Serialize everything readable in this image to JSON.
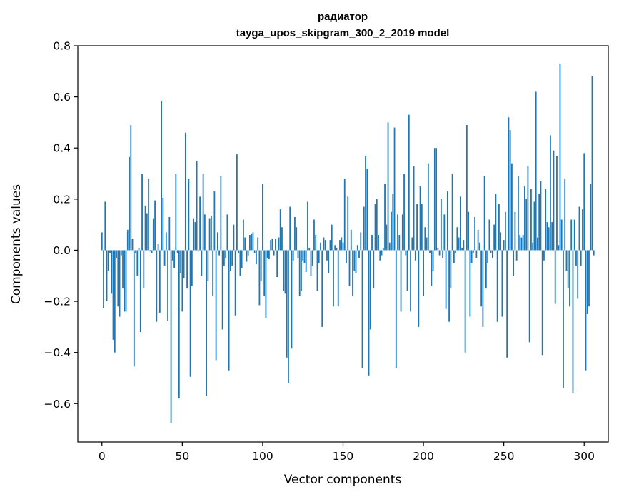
{
  "chart_data": {
    "type": "bar",
    "title": "радиатор",
    "subtitle": "tayga_upos_skipgram_300_2_2019 model",
    "xlabel": "Vector components",
    "ylabel": "Components values",
    "xlim": [
      -15,
      315
    ],
    "ylim": [
      -0.75,
      0.8
    ],
    "xticks": [
      0,
      50,
      100,
      150,
      200,
      250,
      300
    ],
    "yticks": [
      -0.6,
      -0.4,
      -0.2,
      0.0,
      0.2,
      0.4,
      0.6,
      0.8
    ],
    "xtick_labels": [
      "0",
      "50",
      "100",
      "150",
      "200",
      "250",
      "300"
    ],
    "ytick_labels": [
      "−0.6",
      "−0.4",
      "−0.2",
      "0.0",
      "0.2",
      "0.4",
      "0.6",
      "0.8"
    ],
    "bar_color": "#1f77b4",
    "values": [
      0.07,
      -0.225,
      0.19,
      -0.2,
      -0.08,
      -0.01,
      -0.17,
      -0.35,
      -0.4,
      -0.03,
      -0.22,
      -0.26,
      -0.02,
      -0.15,
      -0.24,
      -0.24,
      0.08,
      0.365,
      0.49,
      0.045,
      -0.455,
      -0.01,
      -0.1,
      0.01,
      -0.32,
      0.3,
      -0.15,
      0.175,
      0.145,
      0.28,
      -0.005,
      -0.01,
      0.125,
      0.195,
      -0.28,
      0.025,
      -0.245,
      0.585,
      0.205,
      -0.06,
      0.07,
      -0.275,
      0.13,
      -0.675,
      -0.04,
      -0.07,
      0.3,
      -0.01,
      -0.58,
      -0.09,
      -0.24,
      -0.11,
      0.46,
      -0.15,
      0.28,
      -0.495,
      -0.14,
      0.125,
      0.11,
      0.35,
      -0.005,
      0.21,
      -0.1,
      0.3,
      0.14,
      -0.57,
      -0.12,
      0.125,
      0.135,
      -0.18,
      0.23,
      -0.43,
      0.07,
      -0.02,
      0.29,
      -0.31,
      -0.06,
      -0.03,
      0.14,
      -0.47,
      -0.08,
      -0.06,
      0.1,
      -0.255,
      0.375,
      -0.01,
      -0.1,
      -0.07,
      0.12,
      0.05,
      -0.045,
      -0.02,
      0.06,
      0.065,
      0.07,
      -0.01,
      -0.055,
      0.05,
      -0.215,
      -0.12,
      0.26,
      -0.18,
      -0.265,
      -0.03,
      -0.035,
      0.04,
      0.045,
      -0.02,
      0.045,
      -0.105,
      0.05,
      0.16,
      0.09,
      -0.16,
      -0.17,
      -0.42,
      -0.52,
      0.17,
      -0.385,
      -0.04,
      0.13,
      0.09,
      -0.03,
      -0.18,
      -0.16,
      -0.04,
      -0.05,
      -0.085,
      0.19,
      0.01,
      -0.1,
      -0.06,
      0.12,
      0.06,
      -0.16,
      -0.05,
      0.03,
      -0.3,
      0.05,
      0.04,
      -0.04,
      -0.09,
      0.04,
      0.1,
      -0.22,
      0.02,
      0.01,
      -0.22,
      0.04,
      0.05,
      0.03,
      0.28,
      -0.05,
      0.21,
      -0.14,
      0.08,
      -0.18,
      -0.08,
      -0.09,
      0.02,
      -0.03,
      0.07,
      -0.46,
      0.17,
      0.37,
      0.32,
      -0.49,
      -0.31,
      0.06,
      -0.15,
      0.18,
      0.2,
      0.06,
      -0.04,
      -0.02,
      0.01,
      0.26,
      0.1,
      0.5,
      0.03,
      0.15,
      0.22,
      0.48,
      -0.46,
      0.14,
      0.06,
      -0.24,
      0.14,
      0.3,
      -0.02,
      -0.16,
      0.53,
      -0.24,
      0.05,
      0.33,
      -0.04,
      0.18,
      -0.3,
      0.25,
      0.18,
      -0.18,
      0.09,
      0.05,
      0.34,
      -0.01,
      -0.14,
      -0.08,
      0.4,
      0.4,
      0.01,
      -0.02,
      0.2,
      -0.03,
      0.14,
      -0.23,
      0.23,
      -0.28,
      -0.15,
      0.3,
      -0.05,
      -0.01,
      0.09,
      0.05,
      0.21,
      0.01,
      0.04,
      -0.4,
      0.49,
      0.15,
      -0.26,
      -0.05,
      -0.01,
      0.13,
      -0.03,
      0.08,
      0.03,
      -0.22,
      -0.3,
      0.29,
      -0.15,
      -0.05,
      0.12,
      -0.01,
      -0.03,
      0.1,
      0.22,
      -0.28,
      0.18,
      0.07,
      -0.26,
      0.04,
      0.15,
      -0.42,
      0.52,
      0.47,
      0.34,
      -0.1,
      0.15,
      -0.04,
      0.29,
      0.06,
      0.05,
      0.06,
      0.25,
      0.2,
      0.33,
      -0.36,
      0.24,
      0.03,
      0.19,
      0.62,
      0.05,
      0.22,
      0.27,
      -0.41,
      -0.04,
      0.24,
      0.11,
      0.09,
      0.45,
      0.11,
      0.39,
      -0.21,
      0.37,
      0.02,
      0.73,
      0.12,
      -0.54,
      0.28,
      -0.08,
      -0.15,
      -0.22,
      0.12,
      -0.56,
      0.12,
      -0.06,
      -0.19,
      0.17,
      -0.06,
      0.16,
      0.38,
      -0.47,
      -0.25,
      -0.22,
      0.26,
      0.68,
      -0.02
    ]
  }
}
